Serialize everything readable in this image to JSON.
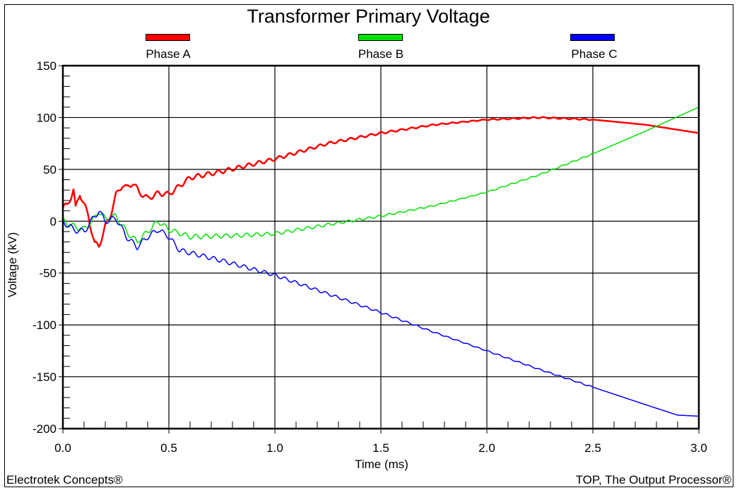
{
  "chart": {
    "title": "Transformer Primary Voltage",
    "xlabel": "Time (ms)",
    "ylabel": "Voltage (kV)",
    "footer_left": "Electrotek Concepts®",
    "footer_right": "TOP, The Output Processor®",
    "legend": [
      {
        "name": "Phase A",
        "color": "#ff0000"
      },
      {
        "name": "Phase B",
        "color": "#00e000"
      },
      {
        "name": "Phase C",
        "color": "#0000ff"
      }
    ]
  },
  "chart_data": {
    "type": "line",
    "title": "Transformer Primary Voltage",
    "xlabel": "Time (ms)",
    "ylabel": "Voltage (kV)",
    "xlim": [
      0.0,
      3.0
    ],
    "ylim": [
      -200,
      150
    ],
    "xticks": [
      0.0,
      0.5,
      1.0,
      1.5,
      2.0,
      2.5,
      3.0
    ],
    "xtick_labels": [
      "0.0",
      "0.5",
      "1.0",
      "1.5",
      "2.0",
      "2.5",
      "3.0"
    ],
    "yticks": [
      150,
      100,
      50,
      0,
      -50,
      -100,
      -150,
      -200
    ],
    "ytick_labels": [
      "150",
      "100",
      "50",
      "0",
      "-50",
      "-100",
      "-150",
      "-200"
    ],
    "grid": true,
    "legend_position": "top",
    "data_provenance": "approximate — anchor points visually estimated from the rendered curves, not extracted from source data",
    "curve_rendering_note": "plotted curves = linear interpolation between estimated anchors plus a synthetic sine ripple (illustrative only, not measured)",
    "series": [
      {
        "name": "Phase A",
        "color": "#ff0000",
        "line_width": 2.5,
        "x": [
          0.0,
          0.02,
          0.05,
          0.06,
          0.08,
          0.12,
          0.15,
          0.17,
          0.2,
          0.22,
          0.25,
          0.28,
          0.3,
          0.33,
          0.36,
          0.4,
          0.45,
          0.5,
          0.6,
          0.75,
          1.0,
          1.25,
          1.5,
          1.75,
          2.0,
          2.25,
          2.5,
          2.75,
          3.0
        ],
        "y": [
          13,
          15,
          30,
          12,
          27,
          5,
          -22,
          -24,
          -5,
          3,
          25,
          35,
          32,
          37,
          28,
          22,
          27,
          26,
          42,
          48,
          60,
          75,
          85,
          93,
          98,
          100,
          98,
          93,
          85
        ]
      },
      {
        "name": "Phase B",
        "color": "#00e000",
        "line_width": 1.5,
        "x": [
          0.0,
          0.05,
          0.1,
          0.15,
          0.17,
          0.2,
          0.25,
          0.3,
          0.35,
          0.4,
          0.45,
          0.5,
          0.6,
          0.8,
          1.0,
          1.2,
          1.35,
          1.5,
          1.75,
          2.0,
          2.25,
          2.5,
          2.75,
          3.0
        ],
        "y": [
          0,
          -5,
          -8,
          3,
          10,
          2,
          5,
          -10,
          -20,
          -10,
          0,
          -8,
          -15,
          -14,
          -12,
          -5,
          0,
          5,
          15,
          28,
          45,
          65,
          87,
          110
        ]
      },
      {
        "name": "Phase C",
        "color": "#0000ff",
        "line_width": 1.5,
        "x": [
          0.0,
          0.05,
          0.1,
          0.15,
          0.17,
          0.2,
          0.25,
          0.3,
          0.35,
          0.4,
          0.45,
          0.5,
          0.55,
          0.75,
          1.0,
          1.25,
          1.5,
          1.75,
          2.0,
          2.25,
          2.5,
          2.75,
          2.9,
          3.0
        ],
        "y": [
          0,
          -8,
          -10,
          5,
          10,
          0,
          3,
          -15,
          -25,
          -15,
          -8,
          -15,
          -28,
          -38,
          -52,
          -70,
          -88,
          -107,
          -125,
          -143,
          -160,
          -177,
          -187,
          -188
        ]
      }
    ]
  }
}
